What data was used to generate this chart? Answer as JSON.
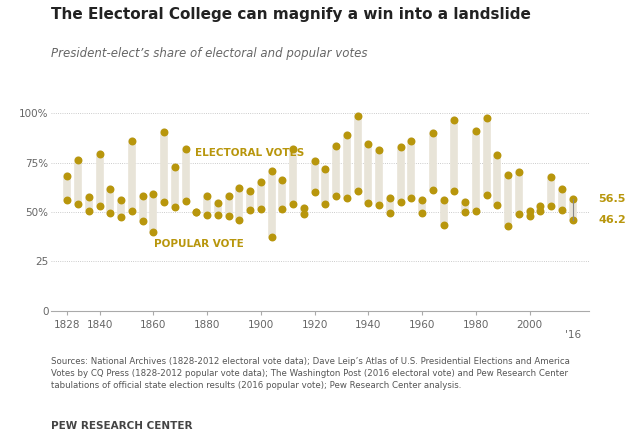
{
  "title": "The Electoral College can magnify a win into a landslide",
  "subtitle": "President-elect’s share of electoral and popular votes",
  "background_color": "#ffffff",
  "plot_bg_color": "#ffffff",
  "dot_color": "#b8960c",
  "bar_color": "#e8e4d8",
  "years": [
    1828,
    1832,
    1836,
    1840,
    1844,
    1848,
    1852,
    1856,
    1860,
    1864,
    1868,
    1872,
    1876,
    1880,
    1884,
    1888,
    1892,
    1896,
    1900,
    1904,
    1908,
    1912,
    1916,
    1920,
    1924,
    1928,
    1932,
    1936,
    1940,
    1944,
    1948,
    1952,
    1956,
    1960,
    1964,
    1968,
    1972,
    1976,
    1980,
    1984,
    1988,
    1992,
    1996,
    2000,
    2004,
    2008,
    2012,
    2016
  ],
  "electoral_votes": [
    68.2,
    76.6,
    57.8,
    79.6,
    61.8,
    56.2,
    85.8,
    58.1,
    59.4,
    90.6,
    72.8,
    81.9,
    50.1,
    58.0,
    54.6,
    58.1,
    62.4,
    60.6,
    65.3,
    70.6,
    66.5,
    81.9,
    52.2,
    76.1,
    71.9,
    83.6,
    88.9,
    98.5,
    84.6,
    81.4,
    57.1,
    83.2,
    86.1,
    56.4,
    90.3,
    55.9,
    96.7,
    55.2,
    90.9,
    97.6,
    79.2,
    68.8,
    70.4,
    50.4,
    53.2,
    67.8,
    61.7,
    56.5
  ],
  "popular_votes": [
    56.0,
    54.2,
    50.8,
    52.9,
    49.5,
    47.3,
    50.8,
    45.3,
    39.8,
    55.0,
    52.7,
    55.6,
    50.1,
    48.3,
    48.5,
    47.8,
    46.0,
    51.0,
    51.6,
    37.6,
    51.6,
    54.0,
    49.2,
    60.3,
    54.0,
    58.2,
    57.4,
    60.8,
    54.7,
    53.4,
    49.6,
    55.1,
    57.4,
    49.7,
    61.1,
    43.4,
    60.7,
    50.1,
    50.7,
    58.8,
    53.4,
    43.0,
    49.2,
    47.9,
    50.7,
    52.9,
    51.1,
    46.2
  ],
  "source_text": "Sources: National Archives (1828-2012 electoral vote data); Dave Leip’s Atlas of U.S. Presidential Elections and America\nVotes by CQ Press (1828-2012 popular vote data); The Washington Post (2016 electoral vote) and Pew Research Center\ntabulations of official state election results (2016 popular vote); Pew Research Center analysis.",
  "footer": "PEW RESEARCH CENTER",
  "label_electoral": "ELECTORAL VOTES",
  "label_popular": "POPULAR VOTE",
  "label_56_5": "56.5",
  "label_46_2": "46.2",
  "yticks": [
    0,
    25,
    50,
    75,
    100
  ],
  "xticks": [
    1828,
    1840,
    1860,
    1880,
    1900,
    1920,
    1940,
    1960,
    1980,
    2000
  ],
  "xlim_min": 1822,
  "xlim_max": 2022,
  "ylim_min": 0,
  "ylim_max": 108
}
